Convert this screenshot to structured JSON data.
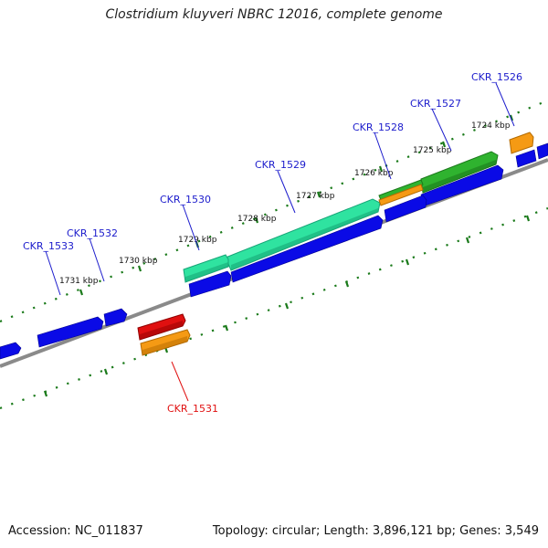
{
  "title": "Clostridium kluyveri NBRC 12016, complete genome",
  "footer": {
    "accession": "Accession: NC_011837",
    "stats": "Topology: circular; Length: 3,896,121 bp; Genes: 3,549"
  },
  "colors": {
    "cds_blue": "#0a0ae6",
    "label_blue": "#1c1ccc",
    "label_red": "#e01010",
    "highlight_red": "#e01010",
    "gene_cyan": "#2fe3a0",
    "gene_green": "#2fb32f",
    "gene_orange": "#f59a14",
    "backbone": "#8a8a8a",
    "tick_green": "#1a7a1a"
  },
  "kbp_labels": [
    "1724 kbp",
    "1725 kbp",
    "1726 kbp",
    "1727 kbp",
    "1728 kbp",
    "1729 kbp",
    "1730 kbp",
    "1731 kbp"
  ],
  "gene_labels": [
    "CKR_1526",
    "CKR_1527",
    "CKR_1528",
    "CKR_1529",
    "CKR_1530",
    "CKR_1531",
    "CKR_1532",
    "CKR_1533"
  ]
}
